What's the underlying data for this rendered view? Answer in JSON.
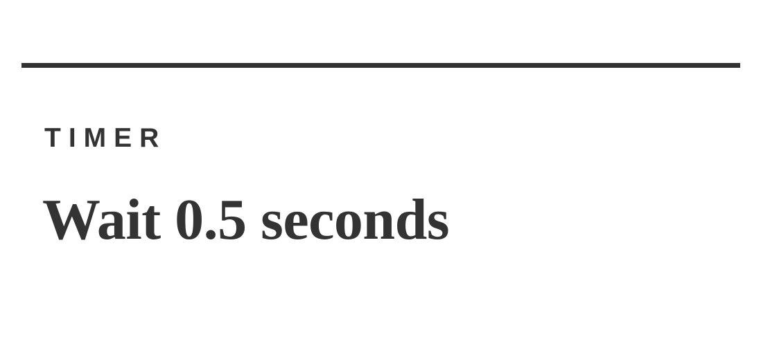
{
  "step": {
    "type_label": "TIMER",
    "description": "Wait 0.5 seconds"
  },
  "colors": {
    "text": "#333333",
    "divider": "#333333",
    "background": "#ffffff"
  }
}
